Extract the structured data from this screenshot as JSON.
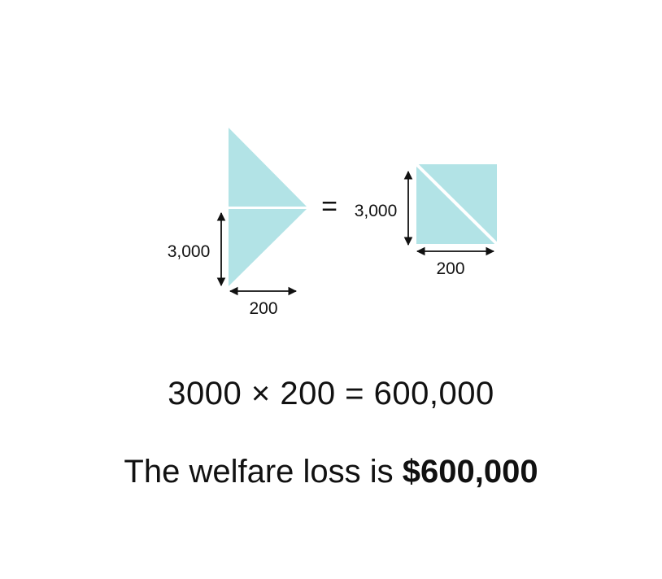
{
  "colors": {
    "fill": "#b2e3e6",
    "separator": "#ffffff",
    "ink": "#111111"
  },
  "left_figure": {
    "height_label": "3,000",
    "width_label": "200"
  },
  "equals": "=",
  "right_figure": {
    "height_label": "3,000",
    "width_label": "200"
  },
  "formula": "3000 × 200 = 600,000",
  "conclusion": {
    "prefix": "The welfare loss is ",
    "amount": "$600,000"
  }
}
